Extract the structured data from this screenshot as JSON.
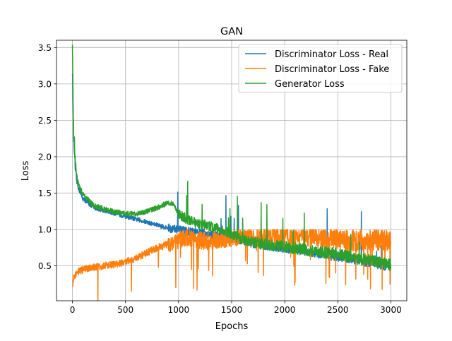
{
  "chart_data": {
    "type": "line",
    "title": "GAN",
    "xlabel": "Epochs",
    "ylabel": "Loss",
    "xlim": [
      -150,
      3150
    ],
    "ylim": [
      0.02,
      3.6
    ],
    "x_ticks": [
      0,
      500,
      1000,
      1500,
      2000,
      2500,
      3000
    ],
    "y_ticks": [
      0.5,
      1.0,
      1.5,
      2.0,
      2.5,
      3.0,
      3.5
    ],
    "x_tick_labels": [
      "0",
      "500",
      "1000",
      "1500",
      "2000",
      "2500",
      "3000"
    ],
    "y_tick_labels": [
      "0.5",
      "1.0",
      "1.5",
      "2.0",
      "2.5",
      "3.0",
      "3.5"
    ],
    "grid": true,
    "legend_position": "upper right",
    "series": [
      {
        "name": "Discriminator Loss - Real",
        "color": "#1f77b4",
        "x": [
          0,
          10,
          30,
          60,
          100,
          200,
          300,
          400,
          500,
          600,
          700,
          800,
          900,
          1000,
          1100,
          1200,
          1300,
          1400,
          1500,
          1600,
          1700,
          1800,
          1900,
          2000,
          2100,
          2200,
          2300,
          2400,
          2500,
          2600,
          2700,
          2800,
          2900,
          3000
        ],
        "y": [
          3.2,
          2.3,
          1.75,
          1.55,
          1.42,
          1.3,
          1.26,
          1.22,
          1.18,
          1.14,
          1.1,
          1.06,
          1.02,
          0.99,
          0.97,
          0.95,
          0.93,
          0.91,
          0.88,
          0.84,
          0.8,
          0.77,
          0.75,
          0.73,
          0.71,
          0.69,
          0.66,
          0.63,
          0.61,
          0.59,
          0.56,
          0.53,
          0.5,
          0.47
        ]
      },
      {
        "name": "Discriminator Loss - Fake",
        "color": "#ff7f0e",
        "x": [
          0,
          10,
          30,
          60,
          100,
          200,
          300,
          400,
          500,
          600,
          700,
          800,
          900,
          1000,
          1100,
          1200,
          1300,
          1400,
          1500,
          1600,
          1700,
          1800,
          1900,
          2000,
          2100,
          2200,
          2300,
          2400,
          2500,
          2600,
          2700,
          2800,
          2900,
          3000
        ],
        "y": [
          0.18,
          0.32,
          0.38,
          0.42,
          0.45,
          0.48,
          0.5,
          0.52,
          0.55,
          0.6,
          0.68,
          0.75,
          0.8,
          0.86,
          0.88,
          0.85,
          0.84,
          0.86,
          0.88,
          0.9,
          0.9,
          0.9,
          0.9,
          0.9,
          0.9,
          0.9,
          0.9,
          0.88,
          0.88,
          0.85,
          0.85,
          0.87,
          0.86,
          0.85
        ]
      },
      {
        "name": "Generator Loss",
        "color": "#2ca02c",
        "x": [
          0,
          10,
          30,
          60,
          100,
          200,
          300,
          400,
          500,
          600,
          700,
          800,
          900,
          950,
          1000,
          1100,
          1200,
          1300,
          1400,
          1500,
          1600,
          1700,
          1800,
          1900,
          2000,
          2100,
          2200,
          2300,
          2400,
          2500,
          2600,
          2700,
          2800,
          2900,
          3000
        ],
        "y": [
          3.5,
          2.4,
          1.85,
          1.6,
          1.48,
          1.33,
          1.28,
          1.24,
          1.22,
          1.21,
          1.25,
          1.3,
          1.37,
          1.35,
          1.22,
          1.12,
          1.08,
          1.04,
          1.0,
          0.93,
          0.86,
          0.82,
          0.8,
          0.78,
          0.76,
          0.74,
          0.72,
          0.7,
          0.68,
          0.66,
          0.63,
          0.6,
          0.58,
          0.55,
          0.52
        ]
      }
    ]
  }
}
